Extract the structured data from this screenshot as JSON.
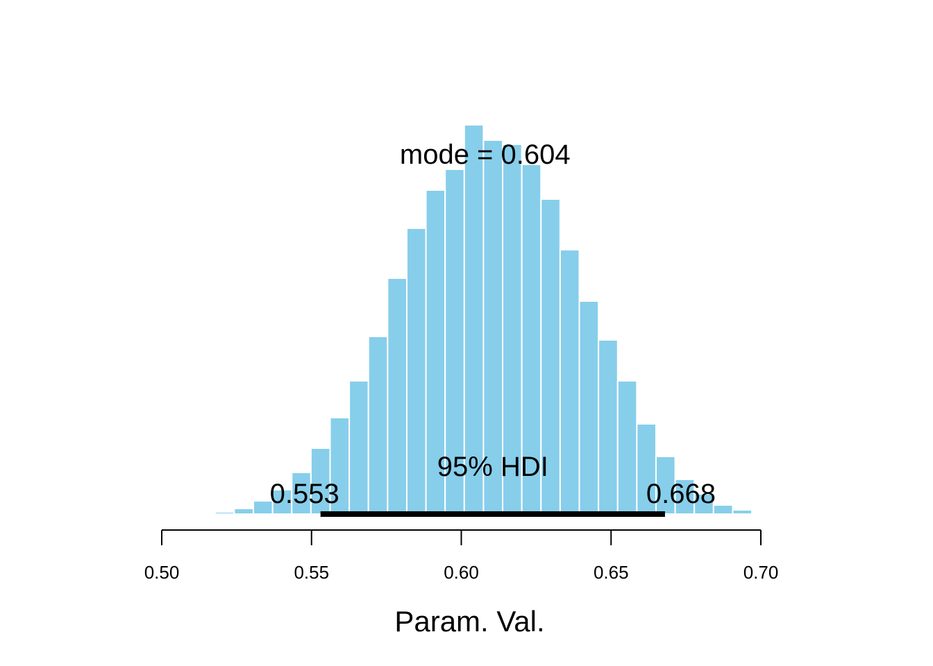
{
  "chart_data": {
    "type": "bar",
    "title": "",
    "xlabel": "Param. Val.",
    "ylabel": "",
    "xlim": [
      0.5,
      0.7
    ],
    "x_ticks": [
      0.5,
      0.55,
      0.6,
      0.65,
      0.7
    ],
    "x_tick_labels": [
      "0.50",
      "0.55",
      "0.60",
      "0.65",
      "0.70"
    ],
    "grid": false,
    "bar_color": "#87ceeb",
    "bins": [
      {
        "x0": 0.5114,
        "x1": 0.5178,
        "value": 1
      },
      {
        "x0": 0.5178,
        "x1": 0.5242,
        "value": 3
      },
      {
        "x0": 0.5242,
        "x1": 0.5306,
        "value": 8
      },
      {
        "x0": 0.5306,
        "x1": 0.537,
        "value": 19
      },
      {
        "x0": 0.537,
        "x1": 0.5434,
        "value": 35
      },
      {
        "x0": 0.5434,
        "x1": 0.5498,
        "value": 60
      },
      {
        "x0": 0.5498,
        "x1": 0.5562,
        "value": 95
      },
      {
        "x0": 0.5562,
        "x1": 0.5626,
        "value": 139
      },
      {
        "x0": 0.5626,
        "x1": 0.569,
        "value": 192
      },
      {
        "x0": 0.569,
        "x1": 0.5754,
        "value": 256
      },
      {
        "x0": 0.5754,
        "x1": 0.5818,
        "value": 340
      },
      {
        "x0": 0.5818,
        "x1": 0.5882,
        "value": 412
      },
      {
        "x0": 0.5882,
        "x1": 0.5946,
        "value": 467
      },
      {
        "x0": 0.5946,
        "x1": 0.601,
        "value": 497
      },
      {
        "x0": 0.601,
        "x1": 0.6074,
        "value": 561
      },
      {
        "x0": 0.6074,
        "x1": 0.6138,
        "value": 539
      },
      {
        "x0": 0.6138,
        "x1": 0.6202,
        "value": 533
      },
      {
        "x0": 0.6202,
        "x1": 0.6266,
        "value": 504
      },
      {
        "x0": 0.6266,
        "x1": 0.633,
        "value": 454
      },
      {
        "x0": 0.633,
        "x1": 0.6394,
        "value": 381
      },
      {
        "x0": 0.6394,
        "x1": 0.6458,
        "value": 307
      },
      {
        "x0": 0.6458,
        "x1": 0.6522,
        "value": 251
      },
      {
        "x0": 0.6522,
        "x1": 0.6586,
        "value": 192
      },
      {
        "x0": 0.6586,
        "x1": 0.665,
        "value": 130
      },
      {
        "x0": 0.665,
        "x1": 0.6714,
        "value": 83
      },
      {
        "x0": 0.6714,
        "x1": 0.6778,
        "value": 50
      },
      {
        "x0": 0.6778,
        "x1": 0.6842,
        "value": 29
      },
      {
        "x0": 0.6842,
        "x1": 0.6906,
        "value": 13
      },
      {
        "x0": 0.6906,
        "x1": 0.697,
        "value": 6
      },
      {
        "x0": 0.697,
        "x1": 0.7034,
        "value": 1
      }
    ],
    "mode_value": 0.604,
    "mode_label": "mode = 0.604",
    "hdi": {
      "label": "95% HDI",
      "low": 0.553,
      "high": 0.668,
      "low_label": "0.553",
      "high_label": "0.668"
    }
  }
}
